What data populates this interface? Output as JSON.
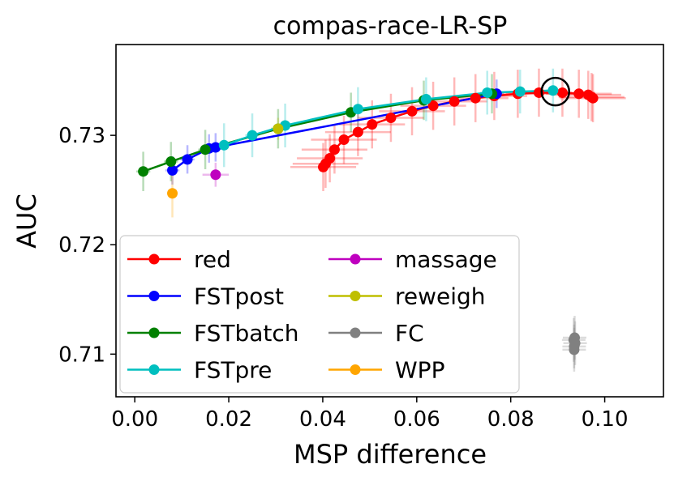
{
  "chart_data": {
    "type": "line",
    "title": "compas-race-LR-SP",
    "xlabel": "MSP difference",
    "ylabel": "AUC",
    "xlim": [
      -0.004,
      0.1125
    ],
    "ylim": [
      0.7061,
      0.7383
    ],
    "xticks": [
      0.0,
      0.02,
      0.04,
      0.06,
      0.08,
      0.1
    ],
    "xtick_labels": [
      "0.00",
      "0.02",
      "0.04",
      "0.06",
      "0.08",
      "0.10"
    ],
    "yticks": [
      0.71,
      0.72,
      0.73
    ],
    "ytick_labels": [
      "0.71",
      "0.72",
      "0.73"
    ],
    "legend": {
      "location": "lower-left",
      "columns": 2
    },
    "series": [
      {
        "name": "red",
        "color": "#ff0000",
        "line": true,
        "x": [
          0.0401,
          0.0406,
          0.0415,
          0.0425,
          0.0445,
          0.0475,
          0.0505,
          0.0545,
          0.059,
          0.0635,
          0.068,
          0.0725,
          0.0765,
          0.0815,
          0.086,
          0.091,
          0.0945,
          0.0965,
          0.0972,
          0.0975
        ],
        "y": [
          0.7271,
          0.7274,
          0.7279,
          0.7287,
          0.7296,
          0.7303,
          0.731,
          0.7316,
          0.7322,
          0.7327,
          0.7331,
          0.7334,
          0.7336,
          0.7338,
          0.7339,
          0.7339,
          0.7338,
          0.7337,
          0.7335,
          0.7334
        ],
        "yerr": 0.0022,
        "xerr": 0.007
      },
      {
        "name": "FSTpost",
        "color": "#0000ff",
        "line": true,
        "x": [
          0.008,
          0.0112,
          0.0158,
          0.0172,
          0.077
        ],
        "y": [
          0.7268,
          0.7278,
          0.7288,
          0.7289,
          0.7338
        ],
        "yerr": 0.0013,
        "xerr": 0.0015
      },
      {
        "name": "FSTbatch",
        "color": "#008000",
        "line": true,
        "x": [
          0.0018,
          0.0077,
          0.015,
          0.0305,
          0.046,
          0.0615,
          0.076
        ],
        "y": [
          0.7267,
          0.7276,
          0.7287,
          0.7306,
          0.7321,
          0.7332,
          0.7338
        ],
        "yerr": 0.0018,
        "xerr": 0.0015
      },
      {
        "name": "FSTpre",
        "color": "#00bfbf",
        "line": true,
        "x": [
          0.019,
          0.025,
          0.032,
          0.0475,
          0.062,
          0.075,
          0.082,
          0.089
        ],
        "y": [
          0.7291,
          0.73,
          0.7309,
          0.7324,
          0.7333,
          0.7339,
          0.734,
          0.7341
        ],
        "yerr": 0.002,
        "xerr": 0.0015
      },
      {
        "name": "massage",
        "color": "#bf00bf",
        "line": false,
        "x": [
          0.0172
        ],
        "y": [
          0.7264
        ],
        "yerr": 0.0011,
        "xerr": 0.0028
      },
      {
        "name": "reweigh",
        "color": "#bfbf00",
        "line": false,
        "x": [
          0.0305
        ],
        "y": [
          0.7306
        ],
        "yerr": 0.001,
        "xerr": 0.0015
      },
      {
        "name": "FC",
        "color": "#808080",
        "line": false,
        "x": [
          0.0935,
          0.0935,
          0.0937,
          0.0934,
          0.0936
        ],
        "y": [
          0.7104,
          0.7107,
          0.711,
          0.7113,
          0.7115
        ],
        "yerr": 0.002,
        "xerr": 0.0025
      },
      {
        "name": "WPP",
        "color": "#ffa500",
        "line": false,
        "x": [
          0.008
        ],
        "y": [
          0.7247
        ],
        "yerr": 0.0022,
        "xerr": 0.0008
      }
    ],
    "annotation": {
      "type": "open-circle",
      "x": 0.0895,
      "y": 0.734,
      "color": "#000000"
    }
  }
}
